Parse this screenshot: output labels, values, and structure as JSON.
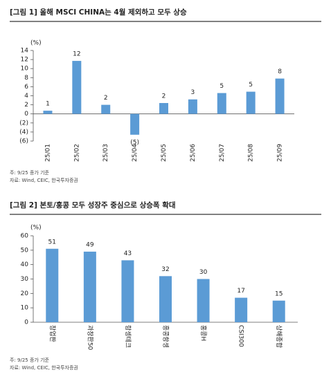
{
  "chart_data": [
    {
      "type": "bar",
      "title": "[그림 1] 올해 MSCI CHINA는 4월 제외하고 모두 상승",
      "ylabel": "(%)",
      "categories": [
        "25/01",
        "25/02",
        "25/03",
        "25/04",
        "25/05",
        "25/06",
        "25/07",
        "25/08",
        "25/09"
      ],
      "values": [
        0.7,
        11.7,
        2.0,
        -4.6,
        2.4,
        3.2,
        4.6,
        4.9,
        7.8
      ],
      "value_labels": [
        "1",
        "12",
        "2",
        "(5)",
        "2",
        "3",
        "5",
        "5",
        "8"
      ],
      "color": "#5b9bd5",
      "ylim": [
        -6,
        14
      ],
      "yticks": [
        {
          "value": -6,
          "label": "(6)"
        },
        {
          "value": -4,
          "label": "(4)"
        },
        {
          "value": -2,
          "label": "(2)"
        },
        0,
        2,
        4,
        6,
        8,
        10,
        12,
        14
      ],
      "notes": [
        "주: 9/25 종가 기준",
        "자료: Wind, CEIC, 한국투자증권"
      ]
    },
    {
      "type": "bar",
      "title": "[그림 2] 본토/홍콩 모두 성장주 중심으로 상승폭 확대",
      "ylabel": "(%)",
      "categories": [
        "창업판",
        "과창판50",
        "항셍테크",
        "홍콩항셍",
        "홍콩H",
        "CSI300",
        "상해종합"
      ],
      "values": [
        51,
        49,
        43,
        32,
        30,
        17,
        15
      ],
      "color": "#5b9bd5",
      "ylim": [
        0,
        60
      ],
      "yticks": [
        0,
        10,
        20,
        30,
        40,
        50,
        60
      ],
      "notes": [
        "주: 9/25 종가 기준",
        "자료: Wind, CEIC, 한국투자증권"
      ]
    }
  ]
}
